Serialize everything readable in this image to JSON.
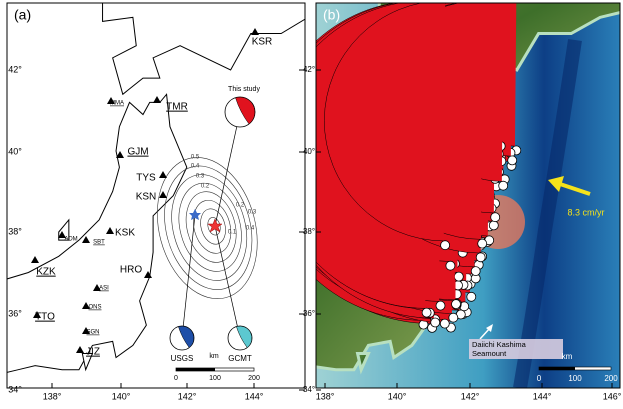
{
  "panel_a": {
    "label": "(a)",
    "lat_ticks": [
      "42°",
      "40°",
      "38°",
      "36°",
      "34°"
    ],
    "lon_ticks": [
      "138°",
      "140°",
      "142°",
      "144°"
    ],
    "stations": [
      "KSR",
      "MMA",
      "TMR",
      "GJM",
      "TYS",
      "KSN",
      "KSK",
      "ADM",
      "SBT",
      "KZK",
      "HRO",
      "ASI",
      "ONS",
      "TTO",
      "SGN",
      "JIZ"
    ],
    "contour_labels": [
      "0.5",
      "0.4",
      "0.3",
      "0.2",
      "0.1",
      "0.2",
      "0.3",
      "0.4"
    ],
    "mechanisms": {
      "this_study": "This study",
      "usgs": "USGS",
      "gcmt": "GCMT"
    },
    "scale": {
      "unit": "km",
      "ticks": [
        "0",
        "100",
        "200"
      ]
    }
  },
  "panel_b": {
    "label": "(b)",
    "lat_ticks": [
      "42°",
      "40°",
      "38°",
      "36°",
      "34°"
    ],
    "lon_ticks": [
      "138°",
      "140°",
      "142°",
      "144°",
      "146°"
    ],
    "velocity": "8.3 cm/yr",
    "seamount": [
      "Daiichi Kashima",
      "Seamount"
    ],
    "scale": {
      "unit": "km",
      "ticks": [
        "0",
        "100",
        "200"
      ]
    }
  }
}
